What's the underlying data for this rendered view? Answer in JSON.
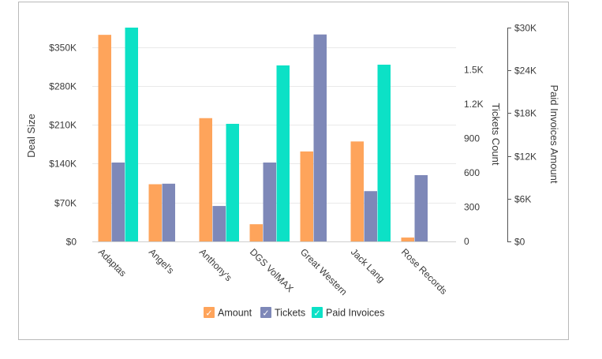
{
  "chart_data": {
    "type": "bar",
    "title": "",
    "categories": [
      "Adaptas",
      "Angel's",
      "Anthony's",
      "DGS VolMAX",
      "Great Western",
      "Jack Lang",
      "Rose Records"
    ],
    "series": [
      {
        "name": "Amount",
        "axis": "left",
        "color": "#fea45b",
        "values": [
          372000,
          103000,
          222000,
          31000,
          162000,
          180000,
          7000
        ]
      },
      {
        "name": "Tickets",
        "axis": "right1",
        "color": "#7e88b8",
        "values": [
          690,
          505,
          310,
          690,
          1810,
          440,
          580
        ]
      },
      {
        "name": "Paid Invoices",
        "axis": "right2",
        "color": "#0ce1c6",
        "values": [
          30000,
          0,
          16500,
          24700,
          0,
          24800,
          0
        ]
      }
    ],
    "left_axis": {
      "label": "Deal Size",
      "min": 0,
      "max": 385000,
      "ticks": [
        0,
        70000,
        140000,
        210000,
        280000,
        350000
      ],
      "tick_labels": [
        "$0",
        "$70K",
        "$140K",
        "$210K",
        "$280K",
        "$350K"
      ]
    },
    "right_axis_1": {
      "label": "Tickets Count",
      "min": 0,
      "max": 1870,
      "ticks": [
        0,
        300,
        600,
        900,
        1200,
        1500
      ],
      "tick_labels": [
        "0",
        "300",
        "600",
        "900",
        "1.2K",
        "1.5K"
      ]
    },
    "right_axis_2": {
      "label": "Paid Invoices Amount",
      "min": 0,
      "max": 30000,
      "ticks": [
        0,
        6000,
        12000,
        18000,
        24000,
        30000
      ],
      "tick_labels": [
        "$0",
        "$6K",
        "$12K",
        "$18K",
        "$24K",
        "$30K"
      ]
    },
    "legend_position": "bottom",
    "grid": true
  },
  "legend": {
    "check_mark": "✓",
    "items": [
      {
        "label": "Amount",
        "color": "#fea45b"
      },
      {
        "label": "Tickets",
        "color": "#7e88b8"
      },
      {
        "label": "Paid Invoices",
        "color": "#0ce1c6"
      }
    ]
  }
}
